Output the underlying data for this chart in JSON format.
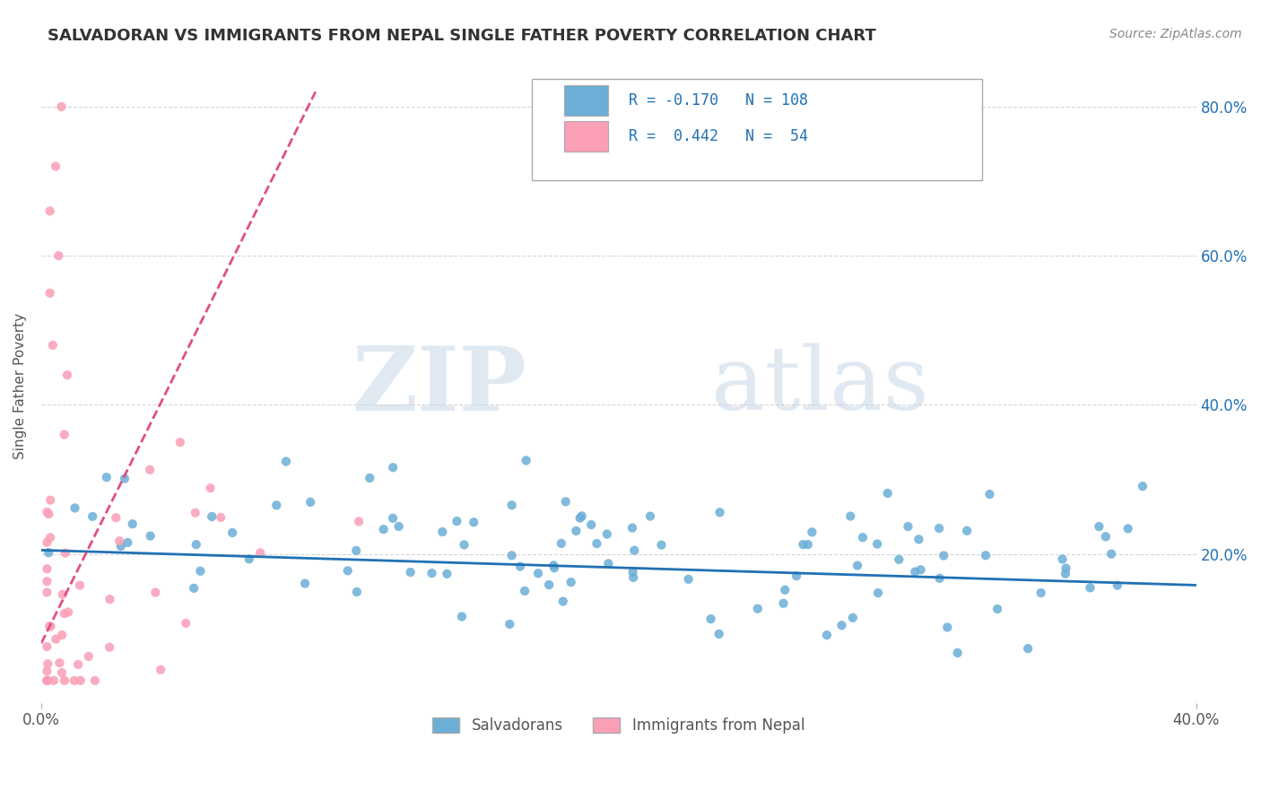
{
  "title": "SALVADORAN VS IMMIGRANTS FROM NEPAL SINGLE FATHER POVERTY CORRELATION CHART",
  "source_text": "Source: ZipAtlas.com",
  "ylabel": "Single Father Poverty",
  "legend_label_blue": "Salvadorans",
  "legend_label_pink": "Immigrants from Nepal",
  "blue_color": "#6baed6",
  "pink_color": "#fa9fb5",
  "blue_line_color": "#2171b5",
  "pink_line_color": "#e05080",
  "xlim": [
    0.0,
    0.4
  ],
  "ylim": [
    0.0,
    0.85
  ],
  "yticks": [
    0.2,
    0.4,
    0.6,
    0.8
  ],
  "ytick_labels": [
    "20.0%",
    "40.0%",
    "60.0%",
    "80.0%"
  ],
  "blue_trend_x": [
    0.0,
    0.4
  ],
  "blue_trend_y": [
    0.205,
    0.158
  ],
  "pink_trend_x": [
    0.0,
    0.095
  ],
  "pink_trend_y": [
    0.08,
    0.82
  ],
  "n_blue": 108,
  "n_pink": 54,
  "r_blue": -0.17,
  "r_pink": 0.442
}
